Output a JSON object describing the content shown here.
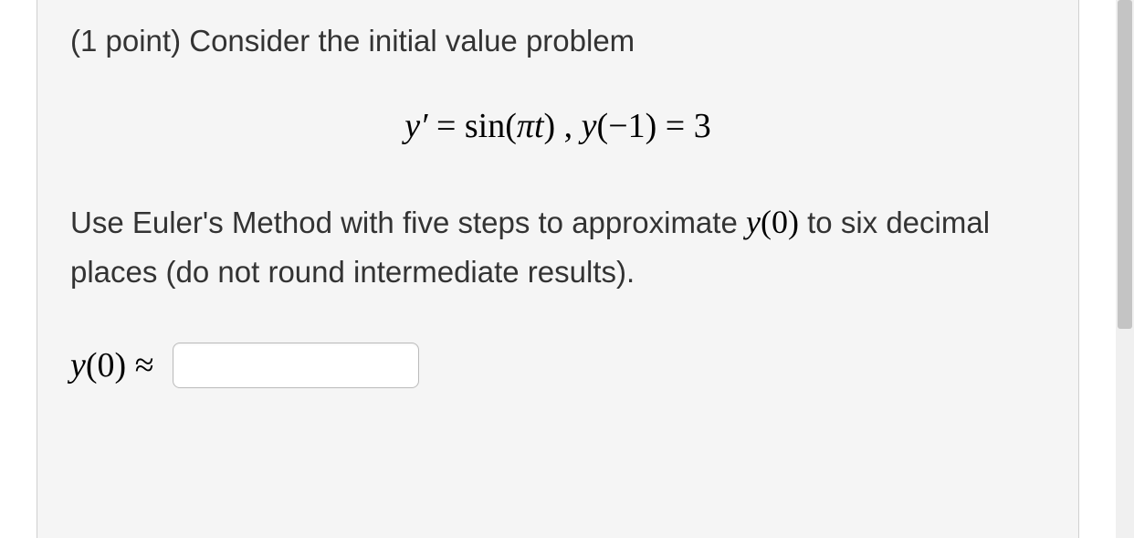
{
  "problem": {
    "points_prefix": "(1 point) ",
    "intro_text": "Consider the initial value problem",
    "equation": {
      "lhs_var": "y",
      "lhs_prime": "′",
      "eq": " = ",
      "rhs_func": "sin",
      "rhs_arg_pi": "π",
      "rhs_arg_t": "t",
      "sep": " , ",
      "cond_var": "y",
      "cond_arg": "−1",
      "cond_eq": " = ",
      "cond_val": "3"
    },
    "instruction_parts": {
      "p1": "Use Euler's Method with five steps to approximate ",
      "p2_math_var": "y",
      "p2_math_arg": "0",
      "p3": " to six decimal places (do not round intermediate results)."
    },
    "answer": {
      "label_var": "y",
      "label_arg": "0",
      "approx": " ≈ ",
      "value": "",
      "placeholder": ""
    }
  },
  "colors": {
    "page_bg": "#ffffff",
    "box_bg": "#f5f5f5",
    "box_border": "#d0d0d0",
    "text": "#333333",
    "math": "#000000",
    "input_border": "#bbbbbb",
    "scrollbar_track": "#f0f0f0",
    "scrollbar_thumb": "#c4c4c4"
  }
}
